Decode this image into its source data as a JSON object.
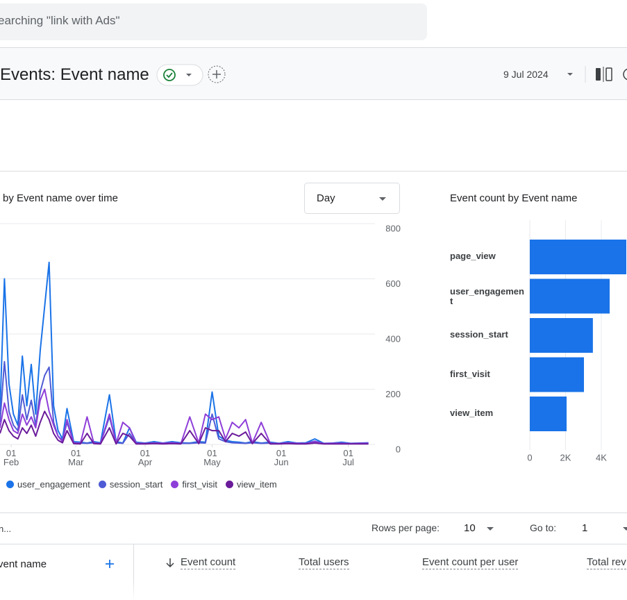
{
  "search": {
    "placeholder": "earching \"link with Ads\""
  },
  "header": {
    "title": "Events: Event name",
    "date": "9 Jul 2024"
  },
  "controls": {
    "interval": "Day",
    "search_hint": "n...",
    "rows_per_page_label": "Rows per page:",
    "rows_per_page": 10,
    "go_to_label": "Go to:",
    "go_to": 1
  },
  "table": {
    "columns": [
      "vent name",
      "Event count",
      "Total users",
      "Event count per user",
      "Total rev"
    ]
  },
  "chart_data": [
    {
      "type": "line",
      "title": "by Event name over time",
      "y_axis_side": "right",
      "grid": true,
      "x": [
        27,
        29,
        31,
        33,
        35,
        37,
        39,
        41,
        43,
        45,
        47,
        49,
        51,
        53,
        55,
        57,
        60,
        63,
        66,
        69,
        72,
        76,
        79,
        82,
        85,
        88,
        92,
        96,
        100,
        104,
        108,
        112,
        116,
        119,
        122,
        125,
        128,
        131,
        134,
        137,
        140,
        144,
        148,
        152,
        156,
        160,
        164,
        168,
        172,
        176,
        180,
        184,
        188,
        192
      ],
      "xlim": [
        27,
        194
      ],
      "xticks": [
        {
          "value": 32,
          "label": "01\nFeb"
        },
        {
          "value": 61,
          "label": "01\nMar"
        },
        {
          "value": 92,
          "label": "01\nApr"
        },
        {
          "value": 122,
          "label": "01\nMay"
        },
        {
          "value": 153,
          "label": "01\nJun"
        },
        {
          "value": 183,
          "label": "01\nJul"
        }
      ],
      "ylim": [
        0,
        800
      ],
      "yticks": [
        0,
        200,
        400,
        600,
        800
      ],
      "series": [
        {
          "name": "user_engagement",
          "color": "#1a73e8",
          "values": [
            120,
            600,
            220,
            110,
            70,
            320,
            140,
            290,
            110,
            340,
            500,
            660,
            140,
            50,
            20,
            130,
            10,
            8,
            5,
            10,
            6,
            180,
            10,
            5,
            60,
            8,
            5,
            10,
            5,
            10,
            6,
            5,
            10,
            8,
            190,
            30,
            15,
            10,
            8,
            5,
            10,
            5,
            8,
            4,
            10,
            5,
            6,
            20,
            4,
            5,
            8,
            4,
            5,
            6
          ]
        },
        {
          "name": "session_start",
          "color": "#4f5bd5",
          "values": [
            80,
            300,
            120,
            70,
            50,
            180,
            90,
            160,
            70,
            190,
            250,
            280,
            80,
            30,
            15,
            80,
            6,
            5,
            4,
            6,
            4,
            100,
            6,
            4,
            40,
            5,
            4,
            6,
            4,
            6,
            4,
            4,
            6,
            5,
            110,
            20,
            10,
            6,
            5,
            4,
            6,
            4,
            5,
            3,
            6,
            4,
            4,
            12,
            3,
            4,
            5,
            3,
            4,
            4
          ]
        },
        {
          "name": "first_visit",
          "color": "#8e3ed8",
          "values": [
            60,
            150,
            90,
            50,
            40,
            110,
            70,
            100,
            60,
            160,
            200,
            120,
            70,
            30,
            10,
            90,
            5,
            4,
            100,
            5,
            3,
            110,
            4,
            80,
            60,
            4,
            3,
            5,
            4,
            6,
            3,
            100,
            5,
            110,
            90,
            100,
            20,
            80,
            60,
            90,
            5,
            80,
            4,
            3,
            5,
            4,
            3,
            10,
            3,
            4,
            4,
            3,
            4,
            4
          ]
        },
        {
          "name": "view_item",
          "color": "#6a1b9a",
          "values": [
            40,
            90,
            50,
            30,
            20,
            60,
            40,
            70,
            30,
            80,
            120,
            90,
            40,
            15,
            6,
            50,
            3,
            2,
            40,
            3,
            2,
            60,
            2,
            40,
            30,
            2,
            2,
            3,
            2,
            3,
            2,
            50,
            3,
            60,
            50,
            50,
            10,
            40,
            30,
            45,
            3,
            40,
            2,
            2,
            3,
            2,
            2,
            5,
            2,
            2,
            2,
            2,
            2,
            2
          ]
        }
      ]
    },
    {
      "type": "bar",
      "orientation": "horizontal",
      "title": "Event count by Event name",
      "grid": true,
      "categories": [
        "page_view",
        "user_engagement",
        "session_start",
        "first_visit",
        "view_item"
      ],
      "values": [
        5400,
        4470,
        3530,
        3030,
        2060
      ],
      "color": "#1a73e8",
      "xlim": [
        0,
        5400
      ],
      "xticks": [
        0,
        {
          "value": 2000,
          "label": "2K"
        },
        {
          "value": 4000,
          "label": "4K"
        }
      ]
    }
  ]
}
